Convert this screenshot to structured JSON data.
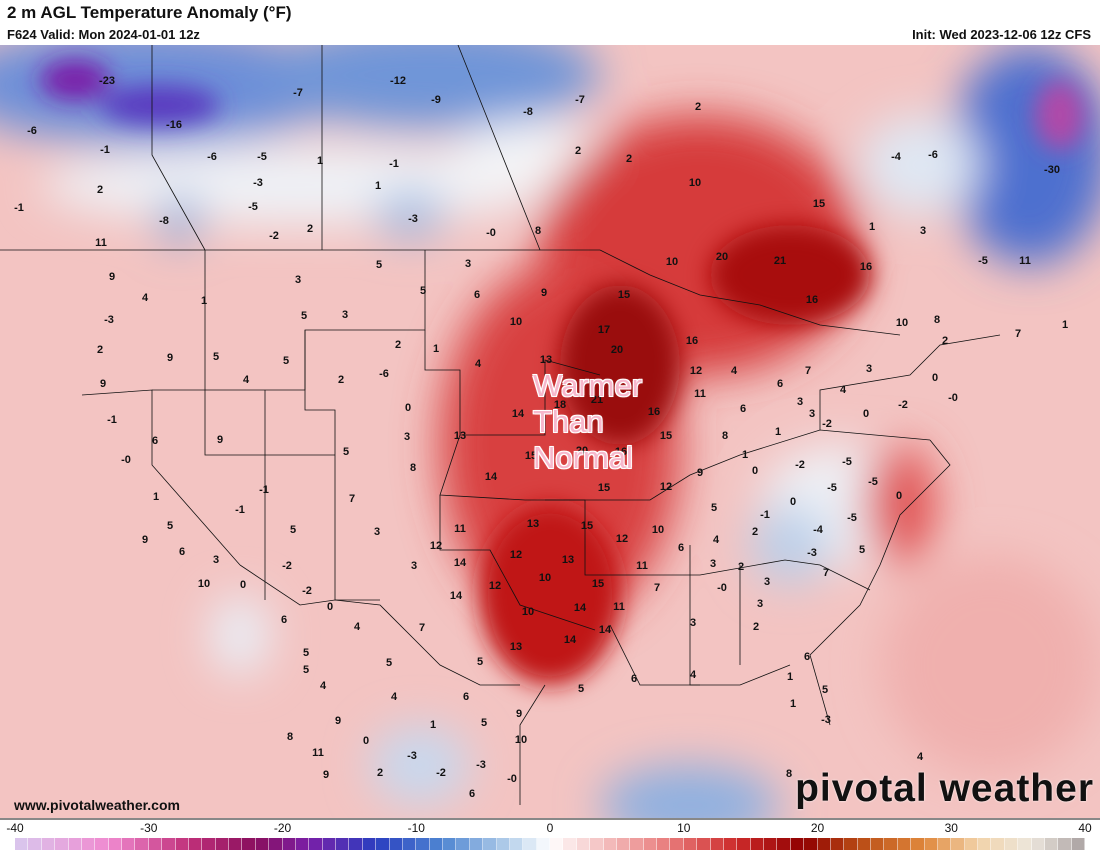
{
  "header": {
    "title": "2 m AGL Temperature Anomaly (°F)",
    "valid": "F624 Valid: Mon 2024-01-01 12z",
    "init": "Init: Wed 2023-12-06 12z CFS"
  },
  "annotation": {
    "line1": "Warmer",
    "line2": "Than",
    "line3": "Normal"
  },
  "footer": {
    "site": "www.pivotalweather.com",
    "logo": "pivotal weather"
  },
  "colorbar": {
    "ticks": [
      "-40",
      "-30",
      "-20",
      "-10",
      "0",
      "10",
      "20",
      "30",
      "40"
    ],
    "range": [
      -40,
      40
    ],
    "colors": {
      "-40": "#d8c8ee",
      "-33": "#f08ad0",
      "-27": "#c0307a",
      "-22": "#8a0f5e",
      "-18": "#7a1fa8",
      "-13": "#2a3fc0",
      "-8": "#4f86d2",
      "-3": "#b6d0ea",
      "0": "#ffffff",
      "4": "#f4c0c0",
      "9": "#e87a7a",
      "14": "#cc2a2a",
      "19": "#900000",
      "23": "#b84a14",
      "28": "#e0883c",
      "32": "#f2d2a8",
      "36": "#ece6dc",
      "40": "#a8a0a0"
    }
  },
  "map_labels": [
    "-23",
    "-7",
    "-12",
    "-9",
    "-7",
    "-8",
    "-6",
    "-16",
    "-1",
    "-6",
    "-5",
    "1",
    "-1",
    "2",
    "2",
    "2",
    "10",
    "-3",
    "1",
    "2",
    "-8",
    "-5",
    "-3",
    "-2",
    "2",
    "-0",
    "8",
    "-6",
    "-4",
    "-30",
    "15",
    "1",
    "3",
    "20",
    "21",
    "16",
    "-5",
    "11",
    "10",
    "16",
    "10",
    "8",
    "7",
    "1",
    "4",
    "1",
    "3",
    "5",
    "3",
    "5",
    "3",
    "5",
    "6",
    "9",
    "15",
    "10",
    "17",
    "20",
    "16",
    "2",
    "1",
    "4",
    "13",
    "12",
    "4",
    "6",
    "7",
    "3",
    "2",
    "9",
    "5",
    "5",
    "2",
    "9",
    "4",
    "2",
    "-6",
    "0",
    "18",
    "21",
    "14",
    "11",
    "16",
    "6",
    "3",
    "4",
    "0",
    "-0",
    "-2",
    "0",
    "-2",
    "3",
    "-1",
    "6",
    "9",
    "3",
    "13",
    "15",
    "8",
    "1",
    "-0",
    "5",
    "8",
    "20",
    "15",
    "16",
    "9",
    "1",
    "0",
    "-2",
    "-5",
    "-5",
    "14",
    "15",
    "12",
    "-5",
    "0",
    "1",
    "-1",
    "7",
    "-1",
    "5",
    "5",
    "3",
    "11",
    "13",
    "15",
    "10",
    "5",
    "-1",
    "-4",
    "-5",
    "0",
    "9",
    "6",
    "12",
    "12",
    "12",
    "6",
    "4",
    "2",
    "-3",
    "5",
    "3",
    "-2",
    "3",
    "14",
    "13",
    "11",
    "3",
    "2",
    "3",
    "7",
    "10",
    "0",
    "-0",
    "-2",
    "12",
    "10",
    "15",
    "7",
    "14",
    "0",
    "11",
    "3",
    "6",
    "10",
    "14",
    "4",
    "7",
    "3",
    "2",
    "14",
    "14",
    "13",
    "5",
    "5",
    "5",
    "6",
    "4",
    "6",
    "4",
    "4",
    "5",
    "1",
    "5",
    "6",
    "1",
    "5",
    "9",
    "5",
    "-3",
    "9",
    "8",
    "0",
    "1",
    "4",
    "8",
    "2",
    "-3",
    "-2",
    "-3",
    "-0",
    "10",
    "11",
    "9",
    "6",
    "-1",
    "11",
    "9",
    "-3"
  ]
}
